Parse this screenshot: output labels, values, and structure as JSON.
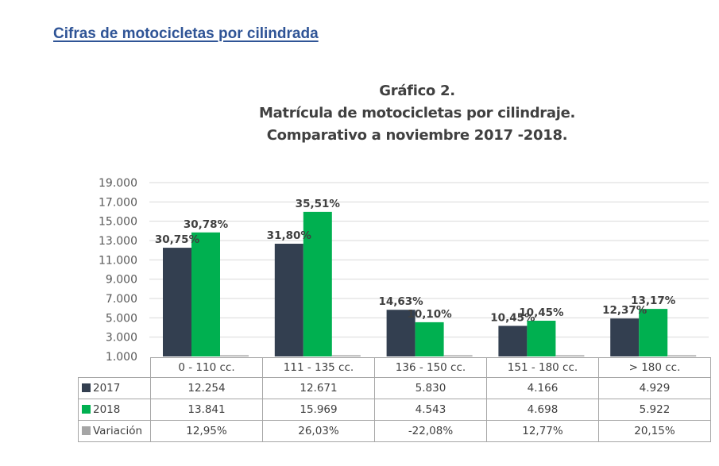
{
  "page": {
    "heading": "Cifras de motocicletas por cilindrada"
  },
  "chart_data": {
    "type": "bar",
    "title_lines": [
      "Gráfico 2.",
      "Matrícula de motocicletas por cilindraje.",
      "Comparativo a noviembre 2017 -2018."
    ],
    "xlabel": "",
    "ylabel": "",
    "ylim": [
      1000,
      19000
    ],
    "yticks": [
      1000,
      3000,
      5000,
      7000,
      9000,
      11000,
      13000,
      15000,
      17000,
      19000
    ],
    "ytick_labels": [
      "1.000",
      "3.000",
      "5.000",
      "7.000",
      "9.000",
      "11.000",
      "13.000",
      "15.000",
      "17.000",
      "19.000"
    ],
    "grid": true,
    "legend": "data-table-bottom",
    "categories": [
      "0 - 110 cc.",
      "111 - 135 cc.",
      "136 - 150 cc.",
      "151 - 180 cc.",
      "> 180 cc."
    ],
    "series": [
      {
        "name": "2017",
        "color": "#333f50",
        "values": [
          12254,
          12671,
          5830,
          4166,
          4929
        ],
        "value_labels": [
          "12.254",
          "12.671",
          "5.830",
          "4.166",
          "4.929"
        ],
        "data_labels": [
          "30,75%",
          "31,80%",
          "14,63%",
          "10,45%",
          "12,37%"
        ]
      },
      {
        "name": "2018",
        "color": "#00b050",
        "values": [
          13841,
          15969,
          4543,
          4698,
          5922
        ],
        "value_labels": [
          "13.841",
          "15.969",
          "4.543",
          "4.698",
          "5.922"
        ],
        "data_labels": [
          "30,78%",
          "35,51%",
          "10,10%",
          "10,45%",
          "13,17%"
        ]
      },
      {
        "name": "Variación",
        "color": "#a5a5a5",
        "values": [
          12.95,
          26.03,
          -22.08,
          12.77,
          20.15
        ],
        "value_labels": [
          "12,95%",
          "26,03%",
          "-22,08%",
          "12,77%",
          "20,15%"
        ]
      }
    ]
  }
}
